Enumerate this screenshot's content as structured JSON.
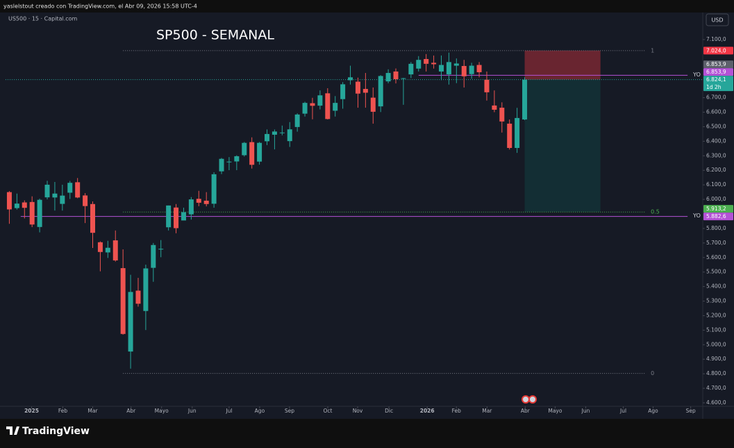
{
  "header": {
    "author_line": "yaslelstout creado con TradingView.com, el Abr 09, 2026 15:58 UTC-4",
    "symbol": "US500 · 15 · Capital.com",
    "currency": "USD"
  },
  "chart_data": {
    "type": "candlestick",
    "title": "SP500 - SEMANAL",
    "up_color": "#26a69a",
    "down_color": "#ef5350",
    "open": [
      6050,
      5940,
      5979,
      5982,
      5810,
      6014,
      6013,
      5969,
      6046,
      6118,
      6027,
      5968,
      5705,
      5635,
      5718,
      5527,
      4953,
      5372,
      5232,
      5529,
      5655,
      5808,
      5944,
      5855,
      5897,
      6004,
      5991,
      5970,
      6193,
      6255,
      6261,
      6304,
      6394,
      6260,
      6400,
      6445,
      6457,
      6401,
      6498,
      6590,
      6662,
      6645,
      6730,
      6610,
      6690,
      6820,
      6810,
      6760,
      6700,
      6640,
      6812,
      6880,
      6830,
      6860,
      6900,
      6966,
      6940,
      6880,
      6860,
      6920,
      6918,
      6862,
      6925,
      6823,
      6646,
      6631,
      6521,
      6354,
      6550
    ],
    "high": [
      6057,
      6040,
      5993,
      6021,
      6005,
      6128,
      6120,
      6101,
      6127,
      6147,
      6043,
      5986,
      5711,
      5715,
      5786,
      5656,
      5481,
      5460,
      5551,
      5700,
      5720,
      5958,
      5968,
      5943,
      6016,
      6059,
      6050,
      6187,
      6285,
      6291,
      6303,
      6395,
      6427,
      6395,
      6481,
      6481,
      6508,
      6532,
      6592,
      6672,
      6699,
      6750,
      6765,
      6711,
      6807,
      6920,
      6838,
      6870,
      6770,
      6855,
      6895,
      6901,
      6836,
      6945,
      6986,
      7000,
      6990,
      6990,
      7010,
      6970,
      6960,
      6940,
      6945,
      6880,
      6750,
      6668,
      6550,
      6630,
      6840
    ],
    "low": [
      5832,
      5930,
      5869,
      5809,
      5773,
      6000,
      5923,
      5923,
      6003,
      6008,
      5837,
      5666,
      5505,
      5597,
      5572,
      5069,
      4835,
      5262,
      5101,
      5433,
      5602,
      5786,
      5767,
      5856,
      5861,
      5953,
      5952,
      5943,
      6174,
      6201,
      6201,
      6295,
      6212,
      6239,
      6374,
      6344,
      6441,
      6361,
      6466,
      6570,
      6551,
      6619,
      6550,
      6570,
      6624,
      6790,
      6631,
      6631,
      6521,
      6601,
      6799,
      6798,
      6651,
      6835,
      6880,
      6880,
      6900,
      6820,
      6790,
      6800,
      6770,
      6830,
      6840,
      6680,
      6600,
      6460,
      6343,
      6320,
      6545
    ],
    "close": [
      5931,
      5971,
      5942,
      5827,
      5997,
      6101,
      6040,
      6026,
      6114,
      6013,
      5954,
      5770,
      5638,
      5667,
      5580,
      5074,
      5363,
      5282,
      5525,
      5686,
      5660,
      5958,
      5802,
      5912,
      6000,
      5977,
      5968,
      6173,
      6279,
      6260,
      6297,
      6389,
      6238,
      6389,
      6450,
      6467,
      6460,
      6482,
      6584,
      6664,
      6644,
      6716,
      6553,
      6664,
      6792,
      6840,
      6728,
      6734,
      6603,
      6849,
      6870,
      6827,
      6834,
      6933,
      6960,
      6933,
      6930,
      6925,
      6945,
      6935,
      6847,
      6920,
      6875,
      6737,
      6617,
      6536,
      6354,
      6560,
      6824.1
    ],
    "xlim": [
      -0.5,
      91.5
    ],
    "xticks": [
      {
        "value": 2.94,
        "label": "2025"
      },
      {
        "value": 7.06,
        "label": "Feb"
      },
      {
        "value": 11.0,
        "label": "Mar"
      },
      {
        "value": 16.06,
        "label": "Abr"
      },
      {
        "value": 20.09,
        "label": "Mayo"
      },
      {
        "value": 24.13,
        "label": "Jun"
      },
      {
        "value": 29.0,
        "label": "Jul"
      },
      {
        "value": 33.03,
        "label": "Ago"
      },
      {
        "value": 36.97,
        "label": "Sep"
      },
      {
        "value": 42.02,
        "label": "Oct"
      },
      {
        "value": 45.96,
        "label": "Nov"
      },
      {
        "value": 50.09,
        "label": "Dic"
      },
      {
        "value": 55.14,
        "label": "2026"
      },
      {
        "value": 58.99,
        "label": "Feb"
      },
      {
        "value": 63.03,
        "label": "Mar"
      },
      {
        "value": 68.07,
        "label": "Abr"
      },
      {
        "value": 72.02,
        "label": "Mayo"
      },
      {
        "value": 76.06,
        "label": "Jun"
      },
      {
        "value": 81.01,
        "label": "Jul"
      },
      {
        "value": 84.95,
        "label": "Ago"
      },
      {
        "value": 89.91,
        "label": "Sep"
      }
    ],
    "ylim": [
      4576,
      7286
    ],
    "yticks": [
      {
        "value": 7100,
        "label": "7.100,0"
      },
      {
        "value": 6700,
        "label": "6.700,0"
      },
      {
        "value": 6600,
        "label": "6.600,0"
      },
      {
        "value": 6500,
        "label": "6.500,0"
      },
      {
        "value": 6400,
        "label": "6.400,0"
      },
      {
        "value": 6300,
        "label": "6.300,0"
      },
      {
        "value": 6200,
        "label": "6.200,0"
      },
      {
        "value": 6100,
        "label": "6.100,0"
      },
      {
        "value": 6000,
        "label": "6.000,0"
      },
      {
        "value": 5800,
        "label": "5.800,0"
      },
      {
        "value": 5700,
        "label": "5.700,0"
      },
      {
        "value": 5600,
        "label": "5.600,0"
      },
      {
        "value": 5500,
        "label": "5.500,0"
      },
      {
        "value": 5400,
        "label": "5.400,0"
      },
      {
        "value": 5300,
        "label": "5.300,0"
      },
      {
        "value": 5200,
        "label": "5.200,0"
      },
      {
        "value": 5100,
        "label": "5.100,0"
      },
      {
        "value": 5000,
        "label": "5.000,0"
      },
      {
        "value": 4900,
        "label": "4.900,0"
      },
      {
        "value": 4800,
        "label": "4.800,0"
      },
      {
        "value": 4700,
        "label": "4.700,0"
      },
      {
        "value": 4600,
        "label": "4.600,0"
      }
    ],
    "fib_x": [
      15,
      84
    ],
    "fib_levels": [
      {
        "value": 7024.0,
        "label": "1",
        "color": "#787b86"
      },
      {
        "value": 5913.2,
        "label": "0.5",
        "color": "#4caf50"
      },
      {
        "value": 4802.4,
        "label": "0",
        "color": "#787b86"
      }
    ],
    "horizontal_lines": [
      {
        "value": 6853.9,
        "label": "YO",
        "color": "#b452d6",
        "x": [
          54,
          89.5
        ]
      },
      {
        "value": 5882.6,
        "label": "YO",
        "color": "#b452d6",
        "x": [
          1.5,
          89.5
        ]
      }
    ],
    "position": {
      "x": [
        68,
        78
      ],
      "target": 7024.0,
      "entry": 6824.1,
      "stop": 5913.2,
      "target_color": "rgba(242,54,69,0.38)",
      "stop_color": "rgba(8,153,129,0.16)"
    },
    "price_labels": [
      {
        "value": 7024.0,
        "label": "7.024,0",
        "color": "#f23645"
      },
      {
        "value": 6853.9,
        "label": "6.853,9",
        "color": "#5d606b"
      },
      {
        "value": 6853.9,
        "label": "6.853,9",
        "color": "#b452d6"
      },
      {
        "value": 6824.1,
        "label": "6.824,1",
        "color": "#26a69a",
        "sublabel": "1d 2h"
      },
      {
        "value": 5913.2,
        "label": "5.913,2",
        "color": "#4caf50"
      },
      {
        "value": 5882.6,
        "label": "5.882,6",
        "color": "#b452d6"
      }
    ]
  },
  "footer": {
    "brand": "TradingView"
  }
}
